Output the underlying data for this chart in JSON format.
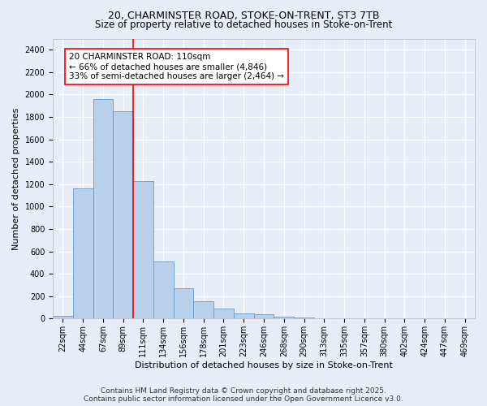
{
  "title_line1": "20, CHARMINSTER ROAD, STOKE-ON-TRENT, ST3 7TB",
  "title_line2": "Size of property relative to detached houses in Stoke-on-Trent",
  "xlabel": "Distribution of detached houses by size in Stoke-on-Trent",
  "ylabel": "Number of detached properties",
  "categories": [
    "22sqm",
    "44sqm",
    "67sqm",
    "89sqm",
    "111sqm",
    "134sqm",
    "156sqm",
    "178sqm",
    "201sqm",
    "223sqm",
    "246sqm",
    "268sqm",
    "290sqm",
    "313sqm",
    "335sqm",
    "357sqm",
    "380sqm",
    "402sqm",
    "424sqm",
    "447sqm",
    "469sqm"
  ],
  "values": [
    25,
    1160,
    1960,
    1850,
    1230,
    510,
    270,
    155,
    90,
    45,
    37,
    15,
    10,
    5,
    5,
    2,
    2,
    5,
    0,
    0,
    2
  ],
  "bar_color": "#b8d0ea",
  "bar_edge_color": "#6699cc",
  "bg_color": "#e8eef8",
  "grid_color": "#ffffff",
  "vline_color": "red",
  "vline_index": 3.5,
  "annotation_text": "20 CHARMINSTER ROAD: 110sqm\n← 66% of detached houses are smaller (4,846)\n33% of semi-detached houses are larger (2,464) →",
  "annotation_box_color": "white",
  "annotation_box_edge": "red",
  "ylim": [
    0,
    2500
  ],
  "yticks": [
    0,
    200,
    400,
    600,
    800,
    1000,
    1200,
    1400,
    1600,
    1800,
    2000,
    2200,
    2400
  ],
  "footer_line1": "Contains HM Land Registry data © Crown copyright and database right 2025.",
  "footer_line2": "Contains public sector information licensed under the Open Government Licence v3.0.",
  "title_fontsize": 9,
  "subtitle_fontsize": 8.5,
  "axis_label_fontsize": 8,
  "tick_fontsize": 7,
  "annotation_fontsize": 7.5,
  "footer_fontsize": 6.5
}
